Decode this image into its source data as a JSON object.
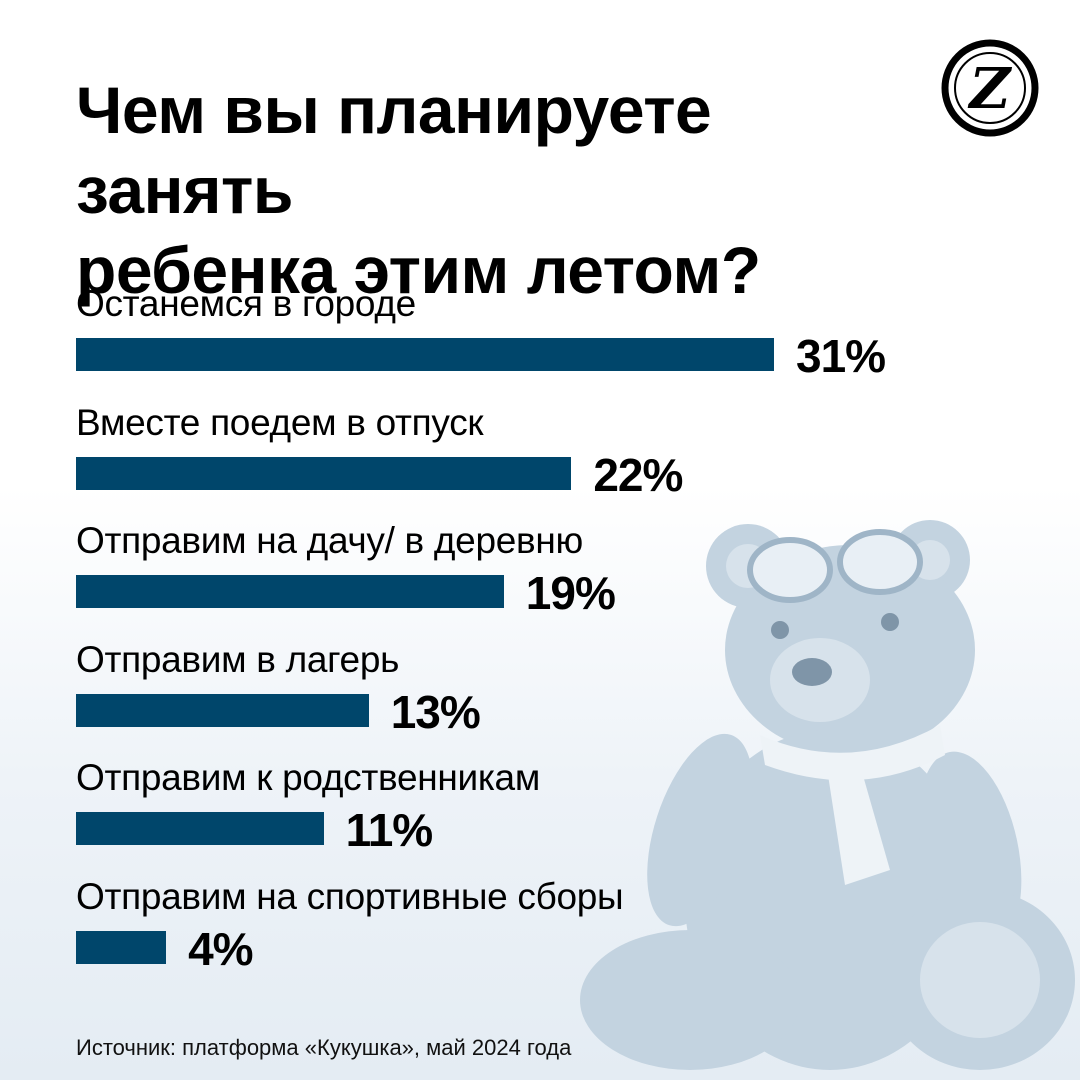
{
  "title_line1": "Чем вы планируете занять",
  "title_line2": "ребенка этим летом?",
  "source": "Источник: платформа «Кукушка», май 2024 года",
  "logo": {
    "icon": "publication-logo-icon",
    "letter": "Z"
  },
  "colors": {
    "bar": "#00466b",
    "text": "#000000",
    "background": "#ffffff",
    "illustration": "#b7c9d8"
  },
  "chart_data": {
    "type": "bar",
    "orientation": "horizontal",
    "categories": [
      "Останемся в городе",
      "Вместе поедем в отпуск",
      "Отправим на дачу/ в деревню",
      "Отправим в лагерь",
      "Отправим к родственникам",
      "Отправим на спортивные сборы"
    ],
    "values": [
      31,
      22,
      19,
      13,
      11,
      4
    ],
    "value_labels": [
      "31%",
      "22%",
      "19%",
      "13%",
      "11%",
      "4%"
    ],
    "unit": "%",
    "xlim": [
      0,
      31
    ],
    "grid": false,
    "legend": "none"
  }
}
